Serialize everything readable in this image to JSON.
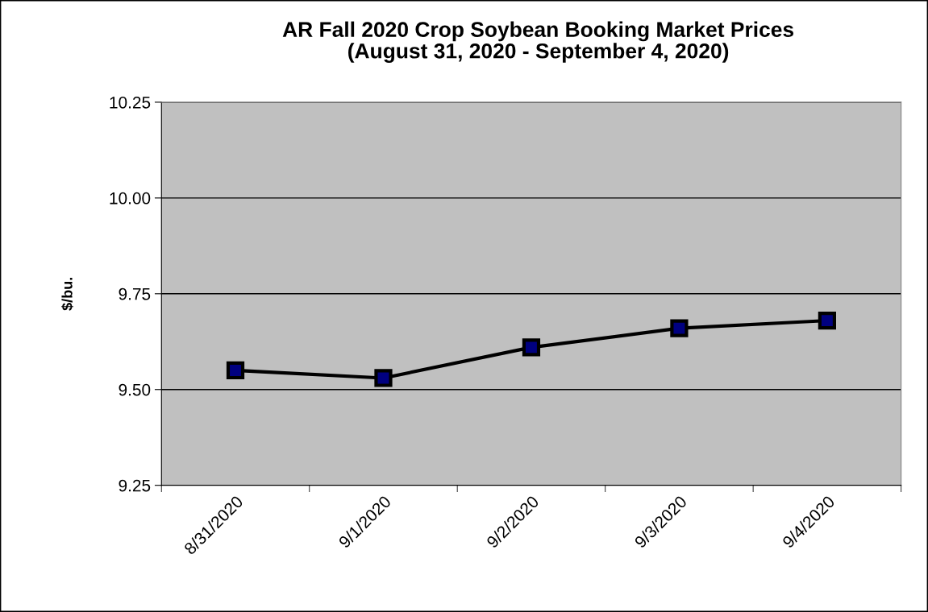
{
  "chart_data": {
    "type": "line",
    "title": "AR Fall 2020 Crop Soybean Booking Market Prices\n(August 31, 2020 - September 4, 2020)",
    "ylabel": "$/bu.",
    "categories": [
      "8/31/2020",
      "9/1/2020",
      "9/2/2020",
      "9/3/2020",
      "9/4/2020"
    ],
    "series": [
      {
        "color": "#000080",
        "values": [
          9.55,
          9.53,
          9.61,
          9.66,
          9.68
        ]
      }
    ],
    "ylim": [
      9.25,
      10.25
    ],
    "yticks": [
      {
        "value": 9.25,
        "label": "9.25"
      },
      {
        "value": 9.5,
        "label": "9.50"
      },
      {
        "value": 9.75,
        "label": "9.75"
      },
      {
        "value": 10.0,
        "label": "10.00"
      },
      {
        "value": 10.25,
        "label": "10.25"
      }
    ],
    "grid": "y",
    "marker": "square",
    "line_style": "solid",
    "legend": false
  }
}
